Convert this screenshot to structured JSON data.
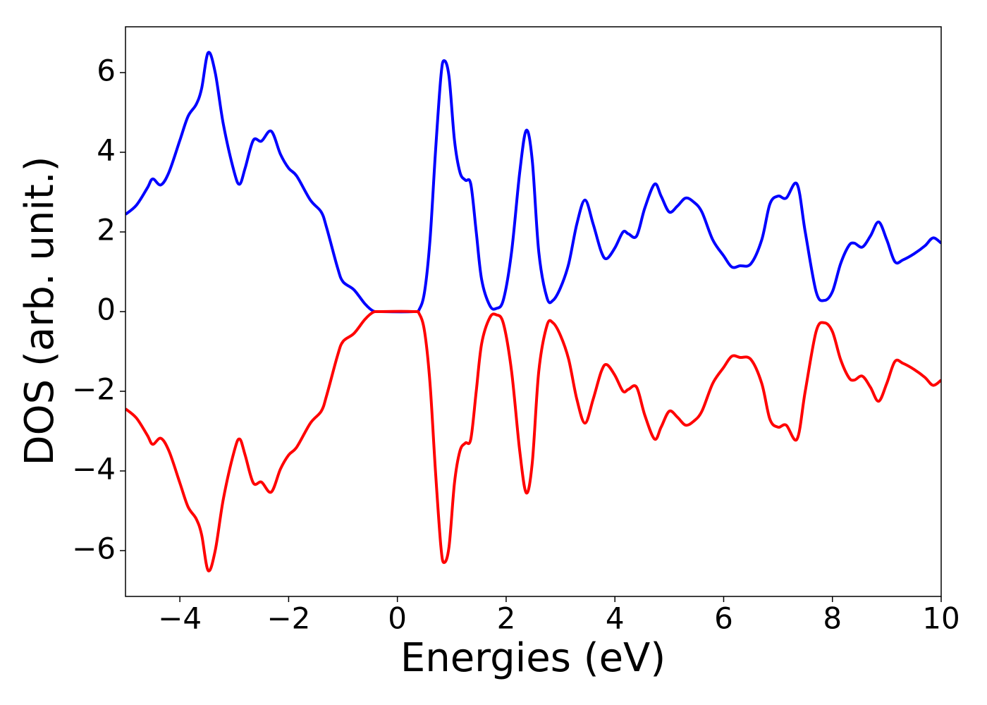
{
  "chart_data": {
    "type": "line",
    "xlabel": "Energies (eV)",
    "ylabel": "DOS (arb. unit.)",
    "x": [
      -5,
      -4.8,
      -4.6,
      -4.5,
      -4.35,
      -4.2,
      -4.0,
      -3.85,
      -3.7,
      -3.6,
      -3.48,
      -3.35,
      -3.2,
      -3.0,
      -2.9,
      -2.8,
      -2.65,
      -2.5,
      -2.32,
      -2.15,
      -2.0,
      -1.85,
      -1.6,
      -1.4,
      -1.3,
      -1.1,
      -1.0,
      -0.8,
      -0.6,
      -0.45,
      -0.3,
      0.3,
      0.4,
      0.5,
      0.6,
      0.7,
      0.8,
      0.86,
      0.95,
      1.05,
      1.15,
      1.25,
      1.35,
      1.45,
      1.55,
      1.7,
      1.82,
      1.95,
      2.1,
      2.25,
      2.37,
      2.48,
      2.6,
      2.75,
      2.86,
      3.0,
      3.15,
      3.3,
      3.45,
      3.6,
      3.75,
      3.85,
      4.0,
      4.15,
      4.25,
      4.4,
      4.55,
      4.73,
      4.85,
      5.0,
      5.15,
      5.3,
      5.45,
      5.6,
      5.8,
      6.0,
      6.15,
      6.3,
      6.5,
      6.7,
      6.85,
      7.0,
      7.15,
      7.35,
      7.5,
      7.7,
      7.85,
      8.0,
      8.15,
      8.3,
      8.4,
      8.55,
      8.7,
      8.85,
      9.0,
      9.15,
      9.3,
      9.5,
      9.7,
      9.85,
      10.0
    ],
    "series": [
      {
        "color": "#0000ff",
        "values": [
          2.44,
          2.67,
          3.1,
          3.33,
          3.18,
          3.5,
          4.3,
          4.9,
          5.2,
          5.6,
          6.5,
          6.0,
          4.7,
          3.5,
          3.2,
          3.6,
          4.3,
          4.28,
          4.53,
          3.95,
          3.6,
          3.4,
          2.8,
          2.5,
          2.1,
          1.1,
          0.75,
          0.55,
          0.2,
          0.02,
          0,
          0,
          0.05,
          0.5,
          1.8,
          4.0,
          5.9,
          6.3,
          5.9,
          4.3,
          3.5,
          3.3,
          3.2,
          2.0,
          0.8,
          0.15,
          0.08,
          0.3,
          1.5,
          3.5,
          4.55,
          3.8,
          1.5,
          0.35,
          0.28,
          0.6,
          1.2,
          2.2,
          2.8,
          2.2,
          1.5,
          1.33,
          1.6,
          2.0,
          1.95,
          1.9,
          2.6,
          3.2,
          2.9,
          2.5,
          2.65,
          2.85,
          2.75,
          2.5,
          1.8,
          1.4,
          1.12,
          1.15,
          1.2,
          1.8,
          2.7,
          2.9,
          2.85,
          3.2,
          2.0,
          0.5,
          0.28,
          0.5,
          1.2,
          1.65,
          1.72,
          1.62,
          1.9,
          2.25,
          1.8,
          1.25,
          1.3,
          1.45,
          1.65,
          1.85,
          1.72
        ]
      },
      {
        "color": "#ff0000",
        "values": [
          -2.44,
          -2.67,
          -3.1,
          -3.33,
          -3.18,
          -3.5,
          -4.3,
          -4.9,
          -5.2,
          -5.6,
          -6.5,
          -6.0,
          -4.7,
          -3.5,
          -3.2,
          -3.6,
          -4.3,
          -4.28,
          -4.53,
          -3.95,
          -3.6,
          -3.4,
          -2.8,
          -2.5,
          -2.1,
          -1.1,
          -0.75,
          -0.55,
          -0.2,
          -0.02,
          0,
          0,
          -0.05,
          -0.5,
          -1.8,
          -4.0,
          -5.9,
          -6.3,
          -5.9,
          -4.3,
          -3.5,
          -3.3,
          -3.2,
          -2.0,
          -0.8,
          -0.15,
          -0.08,
          -0.3,
          -1.5,
          -3.5,
          -4.55,
          -3.8,
          -1.5,
          -0.35,
          -0.28,
          -0.6,
          -1.2,
          -2.2,
          -2.8,
          -2.2,
          -1.5,
          -1.33,
          -1.6,
          -2.0,
          -1.95,
          -1.9,
          -2.6,
          -3.2,
          -2.9,
          -2.5,
          -2.65,
          -2.85,
          -2.75,
          -2.5,
          -1.8,
          -1.4,
          -1.12,
          -1.15,
          -1.2,
          -1.8,
          -2.7,
          -2.9,
          -2.85,
          -3.2,
          -2.0,
          -0.5,
          -0.28,
          -0.5,
          -1.2,
          -1.65,
          -1.72,
          -1.62,
          -1.9,
          -2.25,
          -1.8,
          -1.25,
          -1.3,
          -1.45,
          -1.65,
          -1.85,
          -1.72
        ]
      }
    ],
    "xlim": [
      -5,
      10
    ],
    "xticks": [
      {
        "value": -4,
        "label": "−4"
      },
      {
        "value": -2,
        "label": "−2"
      },
      0,
      2,
      4,
      6,
      8,
      10
    ],
    "ylim": [
      -7.15,
      7.15
    ],
    "yticks": [
      {
        "value": -6,
        "label": "−6"
      },
      {
        "value": -4,
        "label": "−4"
      },
      {
        "value": -2,
        "label": "−2"
      },
      0,
      2,
      4,
      6
    ],
    "grid": false
  }
}
